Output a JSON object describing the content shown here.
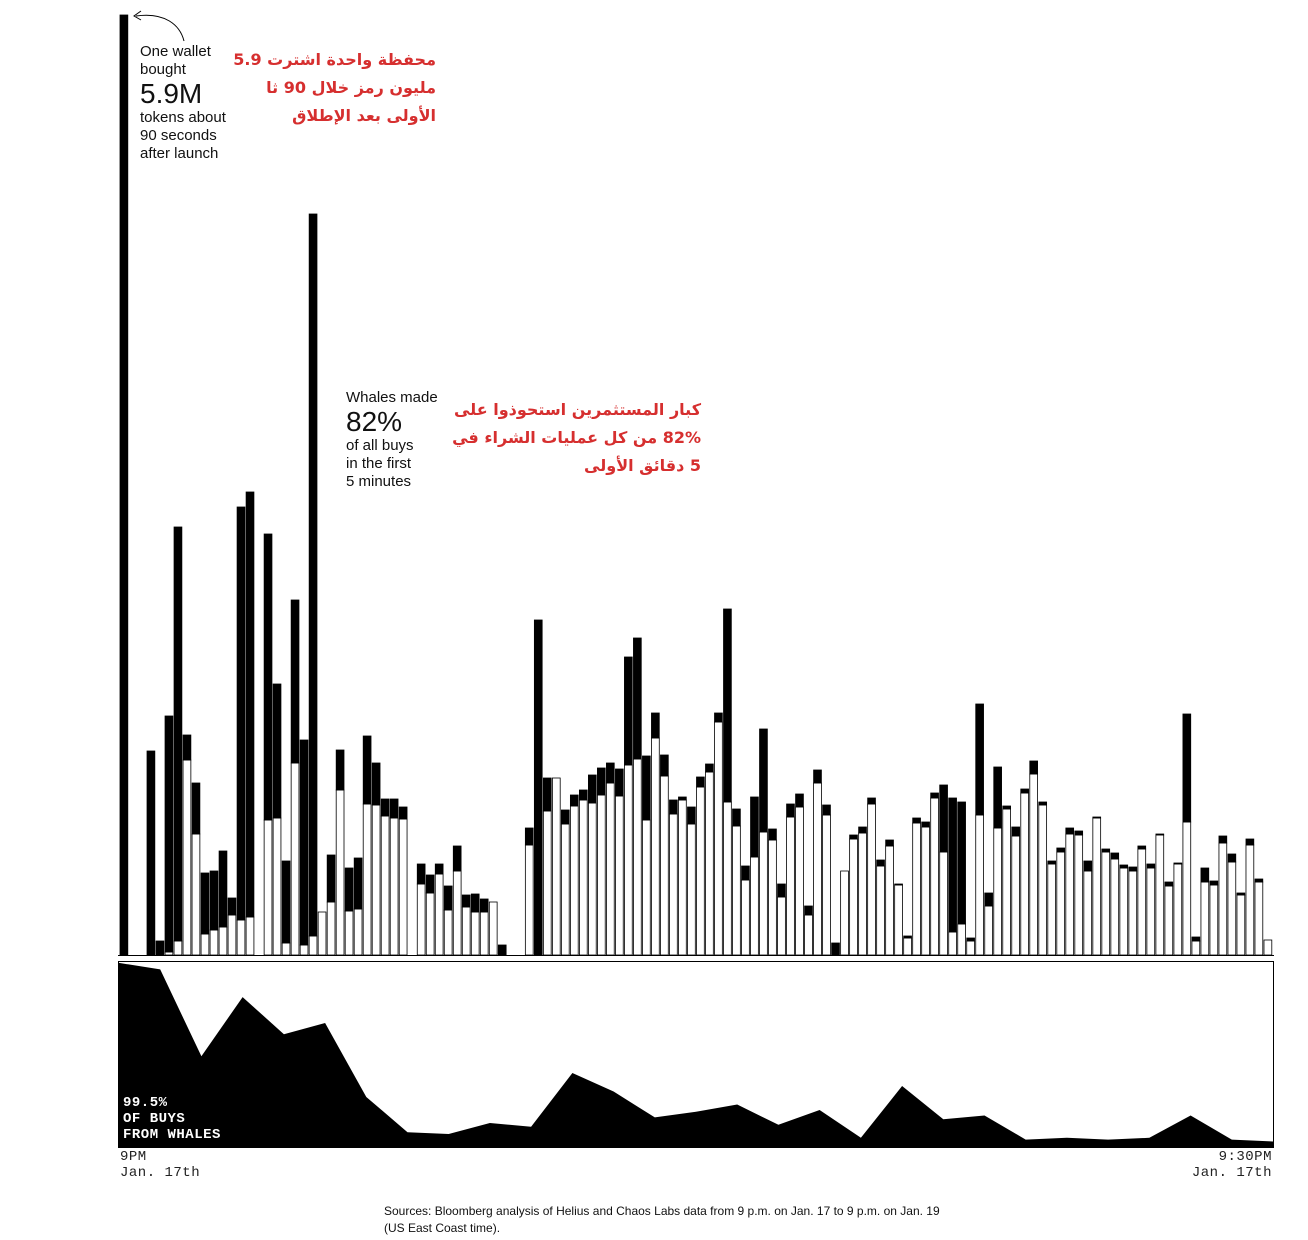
{
  "annotations": {
    "wallet_en_1": "One wallet",
    "wallet_en_2": "bought",
    "wallet_en_big": "5.9M",
    "wallet_en_3": "tokens about",
    "wallet_en_4": "90 seconds",
    "wallet_en_5": "after launch",
    "wallet_ar_1": "محفظة واحدة اشترت 5.9",
    "wallet_ar_2": "مليون رمز خلال 90 ثا",
    "wallet_ar_3": "الأولى بعد الإطلاق",
    "whales_en_1": "Whales made",
    "whales_en_big": "82%",
    "whales_en_2": "of all buys",
    "whales_en_3": "in the first",
    "whales_en_4": "5 minutes",
    "whales_ar_1": "كبار المستثمرين استحوذوا على",
    "whales_ar_2": "82%  من كل عمليات الشراء في",
    "whales_ar_3": "5 دقائق الأولى",
    "area_label_1": "99.5%",
    "area_label_2": "OF BUYS",
    "area_label_3": "FROM WHALES"
  },
  "axis": {
    "start_time": "9PM",
    "start_date": "Jan. 17th",
    "end_time": "9:30PM",
    "end_date": "Jan. 17th"
  },
  "source": {
    "line1": "Sources: Bloomberg analysis of Helius and Chaos Labs data from 9 p.m. on Jan. 17 to 9 p.m. on Jan. 19",
    "line2": "(US East Coast time)."
  },
  "colors": {
    "whale": "#000000",
    "other": "#ffffff",
    "stroke": "#000000",
    "arabic": "#d62f2f"
  },
  "chart_data": [
    {
      "type": "bar",
      "stacked": true,
      "x_range": [
        "9PM",
        "9:30PM"
      ],
      "series": [
        {
          "name": "whales",
          "values": [
            940,
            0,
            0,
            204,
            14,
            236,
            414,
            25,
            51,
            61,
            59,
            76,
            17,
            413,
            425,
            0,
            286,
            134,
            82,
            163,
            205,
            722,
            0,
            47,
            40,
            43,
            51,
            68,
            42,
            17,
            19,
            12,
            0,
            20,
            18,
            10,
            24,
            25,
            12,
            18,
            13,
            0,
            10,
            0,
            0,
            17,
            335,
            33,
            0,
            14,
            11,
            10,
            28,
            27,
            20,
            27,
            108,
            121,
            64,
            25,
            21,
            14,
            3,
            17,
            10,
            8,
            9,
            193,
            17,
            14,
            60,
            103,
            11,
            13,
            13,
            13,
            9,
            13,
            10,
            12,
            0,
            4,
            6,
            6,
            6,
            6,
            1,
            2,
            5,
            5,
            5,
            67,
            134,
            122,
            3,
            111,
            13,
            61,
            3,
            9,
            4,
            13,
            3,
            3,
            4,
            6,
            4,
            10,
            1,
            3,
            6,
            3,
            4,
            3,
            4,
            1,
            4,
            1,
            108,
            4,
            14,
            4,
            7,
            8,
            2,
            6,
            3,
            0
          ]
        },
        {
          "name": "other",
          "values": [
            0,
            0,
            0,
            0,
            0,
            3,
            14,
            195,
            121,
            21,
            25,
            28,
            40,
            35,
            38,
            0,
            135,
            137,
            12,
            192,
            10,
            19,
            43,
            53,
            165,
            44,
            46,
            151,
            150,
            139,
            137,
            136,
            0,
            71,
            62,
            81,
            45,
            84,
            48,
            43,
            43,
            53,
            0,
            0,
            0,
            110,
            0,
            144,
            177,
            131,
            149,
            155,
            152,
            160,
            172,
            159,
            190,
            196,
            135,
            217,
            179,
            141,
            155,
            131,
            168,
            183,
            233,
            153,
            129,
            75,
            98,
            123,
            115,
            58,
            138,
            148,
            40,
            172,
            140,
            0,
            84,
            116,
            122,
            151,
            89,
            109,
            70,
            17,
            132,
            128,
            157,
            103,
            23,
            31,
            14,
            140,
            49,
            127,
            146,
            119,
            162,
            181,
            150,
            91,
            103,
            121,
            120,
            84,
            137,
            103,
            96,
            87,
            84,
            106,
            87,
            120,
            69,
            91,
            133,
            14,
            73,
            70,
            112,
            93,
            60,
            110,
            73,
            15
          ]
        }
      ]
    },
    {
      "type": "area",
      "name": "Share of buys from whales",
      "x_range": [
        "9PM",
        "9:30PM"
      ],
      "ylim": [
        0,
        100
      ],
      "annotation": "99.5% OF BUYS FROM WHALES",
      "values": [
        99.5,
        96,
        49,
        81,
        61,
        67,
        27,
        8,
        7,
        13,
        11,
        40,
        30,
        16,
        19,
        23,
        12,
        20,
        5,
        33,
        15,
        17,
        4,
        5,
        4,
        5,
        17,
        4,
        3
      ]
    }
  ]
}
